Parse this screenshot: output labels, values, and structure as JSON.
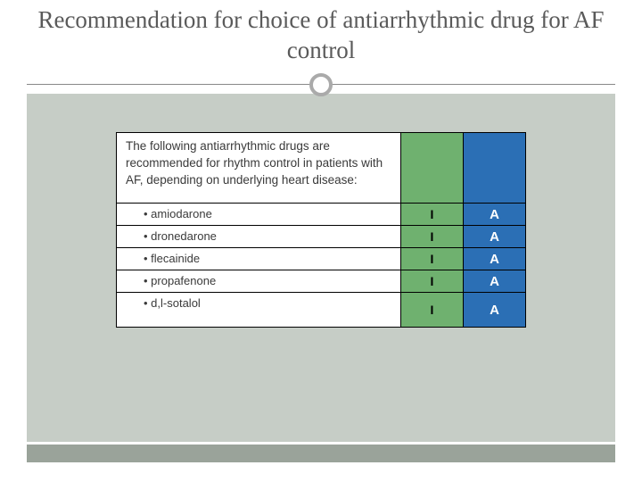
{
  "title": "Recommendation for choice of antiarrhythmic drug for AF control",
  "colors": {
    "title_text": "#5a5a5a",
    "content_bg": "#c6cdc6",
    "footer_bar": "#9aa39a",
    "class_col": "#6fb16f",
    "level_col": "#2b6fb5",
    "border": "#000000",
    "level_text": "#ffffff"
  },
  "table": {
    "header_text": "The following antiarrhythmic drugs are recommended for rhythm control in patients with AF, depending on underlying heart disease:",
    "rows": [
      {
        "drug": "amiodarone",
        "class": "I",
        "level": "A"
      },
      {
        "drug": "dronedarone",
        "class": "I",
        "level": "A"
      },
      {
        "drug": "flecainide",
        "class": "I",
        "level": "A"
      },
      {
        "drug": "propafenone",
        "class": "I",
        "level": "A"
      },
      {
        "drug": "d,l-sotalol",
        "class": "I",
        "level": "A"
      }
    ]
  }
}
